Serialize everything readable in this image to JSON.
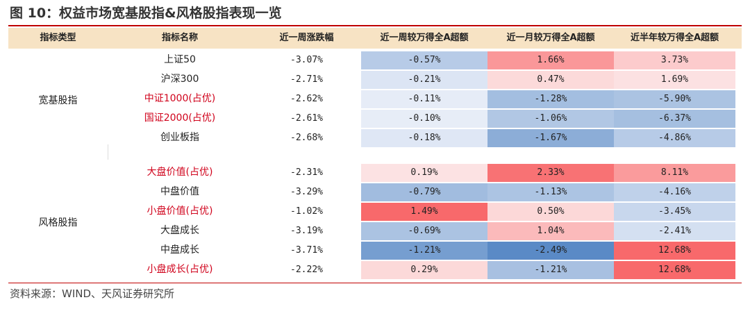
{
  "title": "图 10：权益市场宽基股指&风格股指表现一览",
  "source": "资料来源：WIND、天风证券研究所",
  "colors": {
    "accent_line": "#c00000",
    "header_bg": "#f7e3c4",
    "positive_scale": "#f8696b",
    "negative_scale": "#5a8ac6",
    "highlight_text": "#d0021b"
  },
  "chart_data": {
    "type": "table",
    "columns": [
      "指标类型",
      "指标名称",
      "近一周涨跌幅",
      "近一周较万得全A超额",
      "近一月较万得全A超额",
      "近半年较万得全A超额"
    ],
    "groups": [
      {
        "type": "宽基股指",
        "rows": [
          {
            "name": "上证50",
            "highlight": false,
            "week": "-3.07%",
            "week_excess": "-0.57%",
            "month_excess": "1.66%",
            "half_year_excess": "3.73%"
          },
          {
            "name": "沪深300",
            "highlight": false,
            "week": "-2.71%",
            "week_excess": "-0.21%",
            "month_excess": "0.47%",
            "half_year_excess": "1.69%"
          },
          {
            "name": "中证1000(占优)",
            "highlight": true,
            "week": "-2.62%",
            "week_excess": "-0.11%",
            "month_excess": "-1.28%",
            "half_year_excess": "-5.90%"
          },
          {
            "name": "国证2000(占优)",
            "highlight": true,
            "week": "-2.61%",
            "week_excess": "-0.10%",
            "month_excess": "-1.06%",
            "half_year_excess": "-6.37%"
          },
          {
            "name": "创业板指",
            "highlight": false,
            "week": "-2.68%",
            "week_excess": "-0.18%",
            "month_excess": "-1.67%",
            "half_year_excess": "-4.86%"
          }
        ]
      },
      {
        "type": "风格股指",
        "rows": [
          {
            "name": "大盘价值(占优)",
            "highlight": true,
            "week": "-2.31%",
            "week_excess": "0.19%",
            "month_excess": "2.33%",
            "half_year_excess": "8.11%"
          },
          {
            "name": "中盘价值",
            "highlight": false,
            "week": "-3.29%",
            "week_excess": "-0.79%",
            "month_excess": "-1.13%",
            "half_year_excess": "-4.16%"
          },
          {
            "name": "小盘价值(占优)",
            "highlight": true,
            "week": "-1.02%",
            "week_excess": "1.49%",
            "month_excess": "0.50%",
            "half_year_excess": "-3.45%"
          },
          {
            "name": "大盘成长",
            "highlight": false,
            "week": "-3.19%",
            "week_excess": "-0.69%",
            "month_excess": "1.04%",
            "half_year_excess": "-2.41%"
          },
          {
            "name": "中盘成长",
            "highlight": false,
            "week": "-3.71%",
            "week_excess": "-1.21%",
            "month_excess": "-2.49%",
            "half_year_excess": "12.68%"
          },
          {
            "name": "小盘成长(占优)",
            "highlight": true,
            "week": "-2.22%",
            "week_excess": "0.29%",
            "month_excess": "-1.21%",
            "half_year_excess": "12.68%"
          }
        ]
      }
    ]
  }
}
